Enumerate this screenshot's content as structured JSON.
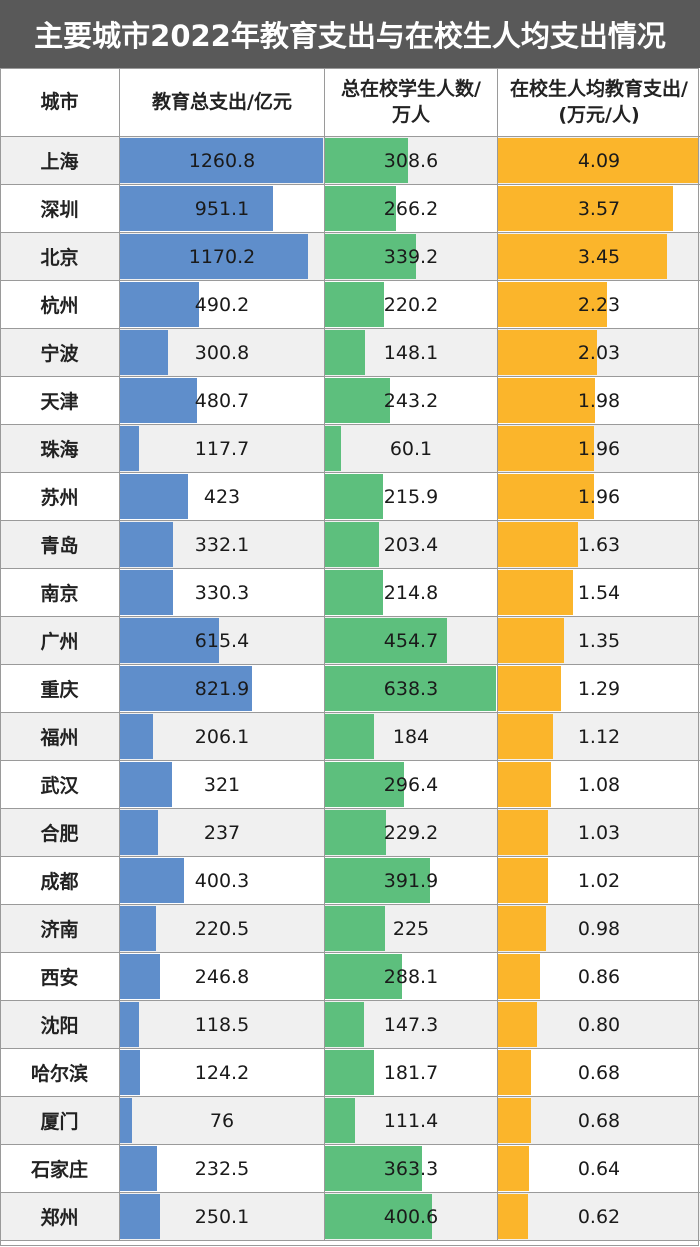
{
  "title": "主要城市2022年教育支出与在校生人均支出情况",
  "colors": {
    "title_bg": "#595959",
    "expenditure_bar": "#5f8ecb",
    "students_bar": "#5dbf7d",
    "per_student_bar": "#fbb52b",
    "row_alt": "#f0f0f0",
    "row_plain": "#ffffff"
  },
  "headers": {
    "city": "城市",
    "expenditure": "教育总支出/亿元",
    "students_line1": "总在校学生人数/",
    "students_line2": "万人",
    "per_student_line1": "在校生人均教育支出/",
    "per_student_line2": "(万元/人)"
  },
  "chart_data": {
    "type": "table",
    "title": "主要城市2022年教育支出与在校生人均支出情况",
    "columns": [
      "城市",
      "教育总支出/亿元",
      "总在校学生人数/万人",
      "在校生人均教育支出/(万元/人)"
    ],
    "rows": [
      {
        "city": "上海",
        "expenditure": "1260.8",
        "students": "308.6",
        "per_student": "4.09"
      },
      {
        "city": "深圳",
        "expenditure": "951.1",
        "students": "266.2",
        "per_student": "3.57"
      },
      {
        "city": "北京",
        "expenditure": "1170.2",
        "students": "339.2",
        "per_student": "3.45"
      },
      {
        "city": "杭州",
        "expenditure": "490.2",
        "students": "220.2",
        "per_student": "2.23"
      },
      {
        "city": "宁波",
        "expenditure": "300.8",
        "students": "148.1",
        "per_student": "2.03"
      },
      {
        "city": "天津",
        "expenditure": "480.7",
        "students": "243.2",
        "per_student": "1.98"
      },
      {
        "city": "珠海",
        "expenditure": "117.7",
        "students": "60.1",
        "per_student": "1.96"
      },
      {
        "city": "苏州",
        "expenditure": "423",
        "students": "215.9",
        "per_student": "1.96"
      },
      {
        "city": "青岛",
        "expenditure": "332.1",
        "students": "203.4",
        "per_student": "1.63"
      },
      {
        "city": "南京",
        "expenditure": "330.3",
        "students": "214.8",
        "per_student": "1.54"
      },
      {
        "city": "广州",
        "expenditure": "615.4",
        "students": "454.7",
        "per_student": "1.35"
      },
      {
        "city": "重庆",
        "expenditure": "821.9",
        "students": "638.3",
        "per_student": "1.29"
      },
      {
        "city": "福州",
        "expenditure": "206.1",
        "students": "184",
        "per_student": "1.12"
      },
      {
        "city": "武汉",
        "expenditure": "321",
        "students": "296.4",
        "per_student": "1.08"
      },
      {
        "city": "合肥",
        "expenditure": "237",
        "students": "229.2",
        "per_student": "1.03"
      },
      {
        "city": "成都",
        "expenditure": "400.3",
        "students": "391.9",
        "per_student": "1.02"
      },
      {
        "city": "济南",
        "expenditure": "220.5",
        "students": "225",
        "per_student": "0.98"
      },
      {
        "city": "西安",
        "expenditure": "246.8",
        "students": "288.1",
        "per_student": "0.86"
      },
      {
        "city": "沈阳",
        "expenditure": "118.5",
        "students": "147.3",
        "per_student": "0.80"
      },
      {
        "city": "哈尔滨",
        "expenditure": "124.2",
        "students": "181.7",
        "per_student": "0.68"
      },
      {
        "city": "厦门",
        "expenditure": "76",
        "students": "111.4",
        "per_student": "0.68"
      },
      {
        "city": "石家庄",
        "expenditure": "232.5",
        "students": "363.3",
        "per_student": "0.64"
      },
      {
        "city": "郑州",
        "expenditure": "250.1",
        "students": "400.6",
        "per_student": "0.62"
      }
    ]
  }
}
